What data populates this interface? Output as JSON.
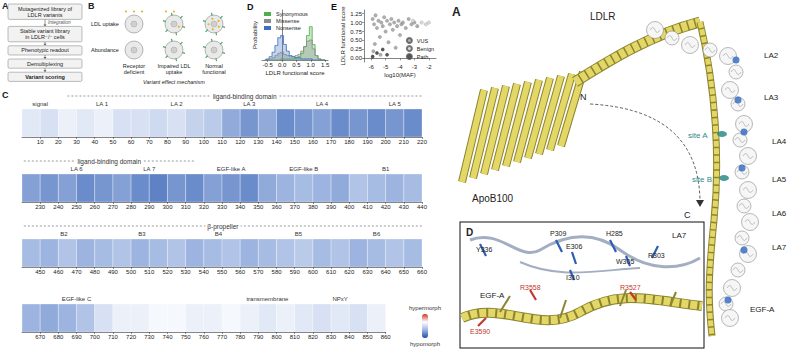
{
  "figure_left": {
    "A": {
      "label": "A",
      "steps": [
        "Mutagenized library of LDLR variants",
        "Stable variant library in LDLR⁻/⁻ cells",
        "Phenotypic readout",
        "Demultiplexing",
        "Variant scoring"
      ],
      "arrow_label": "Integration"
    },
    "B": {
      "label": "B",
      "rows": [
        "LDL uptake",
        "Abundance"
      ],
      "columns": [
        "Receptor deficient",
        "Impaired LDL uptake",
        "Normal functional"
      ],
      "caption": "Variant effect mechanism"
    }
  },
  "chart_data": [
    {
      "type": "line",
      "panel": "D",
      "line_style": "step",
      "xlabel": "LDLR functional score",
      "ylabel": "Probability",
      "x": [
        -0.6,
        -0.5,
        -0.4,
        -0.3,
        -0.2,
        -0.1,
        0,
        0.1,
        0.2,
        0.3,
        0.4,
        0.5,
        0.6,
        0.7,
        0.8,
        0.9,
        1.0,
        1.1,
        1.2,
        1.3,
        1.4,
        1.5
      ],
      "series": [
        {
          "name": "Synonymous",
          "color": "#4daf4a",
          "values": [
            0,
            0,
            0,
            0,
            0,
            0,
            0.01,
            0.01,
            0.01,
            0.01,
            0.01,
            0.02,
            0.03,
            0.06,
            0.12,
            0.22,
            0.3,
            0.14,
            0.04,
            0.01,
            0,
            0
          ]
        },
        {
          "name": "Missense",
          "color": "#8c8c8c",
          "values": [
            0,
            0,
            0.01,
            0.02,
            0.04,
            0.06,
            0.07,
            0.05,
            0.04,
            0.03,
            0.03,
            0.04,
            0.05,
            0.08,
            0.12,
            0.17,
            0.18,
            0.1,
            0.04,
            0.01,
            0,
            0
          ]
        },
        {
          "name": "Nonsense",
          "color": "#3a6fc1",
          "values": [
            0,
            0.01,
            0.03,
            0.07,
            0.13,
            0.2,
            0.22,
            0.14,
            0.08,
            0.04,
            0.03,
            0.02,
            0.02,
            0.01,
            0.01,
            0.01,
            0.01,
            0,
            0,
            0,
            0,
            0
          ]
        }
      ],
      "xlim": [
        -0.7,
        1.6
      ],
      "xticks": [
        -0.5,
        {
          "value": 0,
          "label": "0.0"
        },
        0.5,
        {
          "value": 1,
          "label": "1.0"
        },
        1.5
      ],
      "ylim": [
        0,
        0.45
      ],
      "tick_labels": "x",
      "grid": false,
      "legend": "upper left"
    },
    {
      "type": "scatter",
      "panel": "E",
      "marker": "circle",
      "xlabel": "log10(MAF)",
      "ylabel": "LDLR functional score",
      "series": [
        {
          "name": "VUS",
          "color": "#9a9a9a",
          "values": [
            [
              -5.9,
              1.1
            ],
            [
              -5.8,
              0.95
            ],
            [
              -5.7,
              1.2
            ],
            [
              -5.6,
              0.85
            ],
            [
              -5.5,
              1.05
            ],
            [
              -5.4,
              0.6
            ],
            [
              -5.3,
              1.0
            ],
            [
              -5.2,
              0.9
            ],
            [
              -5.1,
              1.15
            ],
            [
              -5.0,
              0.75
            ],
            [
              -4.9,
              1.05
            ],
            [
              -4.8,
              0.45
            ],
            [
              -4.7,
              0.95
            ],
            [
              -4.6,
              1.1
            ],
            [
              -4.5,
              0.8
            ],
            [
              -4.4,
              1.0
            ],
            [
              -4.3,
              0.3
            ],
            [
              -4.2,
              0.9
            ],
            [
              -4.1,
              1.05
            ],
            [
              -4.0,
              0.65
            ],
            [
              -3.9,
              0.95
            ],
            [
              -3.8,
              1.0
            ],
            [
              -3.6,
              0.85
            ],
            [
              -3.4,
              1.1
            ],
            [
              -3.2,
              0.95
            ],
            [
              -3.0,
              1.0
            ],
            [
              -2.8,
              0.9
            ],
            [
              -5.85,
              0.2
            ],
            [
              -5.35,
              0.1
            ],
            [
              -5.75,
              0.4
            ]
          ]
        },
        {
          "name": "Benign",
          "color": "#cfcfcf",
          "values": [
            [
              -2.5,
              1.0
            ],
            [
              -2.2,
              0.95
            ],
            [
              -3.1,
              1.05
            ],
            [
              -2.0,
              1.0
            ]
          ]
        },
        {
          "name": "Path",
          "color": "#2b2b2b",
          "values": [
            [
              -5.9,
              0.05
            ],
            [
              -5.6,
              0.15
            ],
            [
              -5.2,
              0.25
            ],
            [
              -4.9,
              0.1
            ]
          ]
        }
      ],
      "xlim": [
        -6.5,
        -1.5
      ],
      "xticks": [
        -6,
        -5,
        -4,
        -3,
        -2
      ],
      "ylim": [
        -0.1,
        1.35
      ],
      "yticks": [
        {
          "value": 0,
          "label": "0.00"
        },
        0.25,
        {
          "value": 0.5,
          "label": "0.50"
        },
        0.75,
        {
          "value": 1,
          "label": "1.00"
        },
        1.25
      ],
      "grid": false,
      "legend": "lower right"
    },
    {
      "type": "heatmap",
      "panel": "C",
      "grid": false,
      "colorbar": {
        "range": [
          0,
          1.5
        ],
        "labels": [
          "hypermorph",
          "hypomorph"
        ]
      },
      "strips": [
        {
          "xlim": [
            0,
            220
          ],
          "bins": [
            0,
            10,
            20,
            30,
            40,
            50,
            60,
            70,
            80,
            90,
            100,
            110,
            120,
            130,
            140,
            150,
            160,
            170,
            180,
            190,
            200,
            210,
            220
          ],
          "values": [
            0.85,
            0.8,
            0.9,
            0.85,
            0.9,
            0.8,
            0.8,
            0.75,
            0.8,
            0.7,
            0.65,
            0.45,
            0.35,
            0.45,
            0.3,
            0.35,
            0.4,
            0.3,
            0.35,
            0.3,
            0.35,
            0.3
          ],
          "xticks": [
            10,
            20,
            30,
            40,
            50,
            60,
            70,
            80,
            90,
            100,
            110,
            120,
            130,
            140,
            150,
            160,
            170,
            180,
            190,
            200,
            210,
            220
          ],
          "annotations": [
            {
              "text": "signal",
              "x": 10
            },
            {
              "text": "LA 1",
              "x": 44
            },
            {
              "text": "LA 2",
              "x": 85
            },
            {
              "text": "LA 3",
              "x": 125
            },
            {
              "text": "LA 4",
              "x": 165
            },
            {
              "text": "LA 5",
              "x": 205
            }
          ],
          "spans": [
            {
              "text": "ligand-binding domain",
              "from": 25,
              "to": 220
            }
          ]
        },
        {
          "xlim": [
            220,
            440
          ],
          "bins": [
            220,
            230,
            240,
            250,
            260,
            270,
            280,
            290,
            300,
            310,
            320,
            330,
            340,
            350,
            360,
            370,
            380,
            390,
            400,
            410,
            420,
            430,
            440
          ],
          "values": [
            0.4,
            0.35,
            0.4,
            0.3,
            0.35,
            0.4,
            0.3,
            0.25,
            0.35,
            0.3,
            0.4,
            0.35,
            0.3,
            0.45,
            0.5,
            0.55,
            0.5,
            0.45,
            0.6,
            0.55,
            0.5,
            0.55
          ],
          "xticks": [
            230,
            240,
            250,
            260,
            270,
            280,
            290,
            300,
            310,
            320,
            330,
            340,
            350,
            360,
            370,
            380,
            390,
            400,
            410,
            420,
            430,
            440
          ],
          "annotations": [
            {
              "text": "LA 6",
              "x": 250
            },
            {
              "text": "LA 7",
              "x": 290
            },
            {
              "text": "EGF-like A",
              "x": 335
            },
            {
              "text": "EGF-like B",
              "x": 375
            },
            {
              "text": "B1",
              "x": 420
            }
          ],
          "spans": [
            {
              "text": "ligand-binding domain",
              "from": 221,
              "to": 315
            }
          ]
        },
        {
          "xlim": [
            440,
            660
          ],
          "bins": [
            440,
            450,
            460,
            470,
            480,
            490,
            500,
            510,
            520,
            530,
            540,
            550,
            560,
            570,
            580,
            590,
            600,
            610,
            620,
            630,
            640,
            650,
            660
          ],
          "values": [
            0.55,
            0.5,
            0.6,
            0.5,
            0.55,
            0.6,
            0.5,
            0.55,
            0.6,
            0.5,
            0.55,
            0.6,
            0.5,
            0.55,
            0.6,
            0.65,
            0.55,
            0.6,
            0.5,
            0.55,
            0.6,
            0.55
          ],
          "xticks": [
            450,
            460,
            470,
            480,
            490,
            500,
            510,
            520,
            530,
            540,
            550,
            560,
            570,
            580,
            590,
            600,
            610,
            620,
            630,
            640,
            650,
            660
          ],
          "annotations": [
            {
              "text": "B2",
              "x": 463
            },
            {
              "text": "B3",
              "x": 506
            },
            {
              "text": "B4",
              "x": 548
            },
            {
              "text": "B5",
              "x": 592
            },
            {
              "text": "B6",
              "x": 635
            }
          ],
          "spans": [
            {
              "text": "β-propeller",
              "from": 441,
              "to": 660
            }
          ]
        },
        {
          "xlim": [
            660,
            860
          ],
          "bins": [
            660,
            670,
            680,
            690,
            700,
            710,
            720,
            730,
            740,
            750,
            760,
            770,
            780,
            790,
            800,
            810,
            820,
            830,
            840,
            850,
            860
          ],
          "values": [
            0.5,
            0.45,
            0.5,
            0.6,
            0.8,
            0.9,
            0.9,
            0.95,
            0.95,
            0.9,
            0.9,
            0.95,
            0.9,
            0.85,
            0.9,
            0.85,
            0.8,
            0.85,
            0.8,
            0.9
          ],
          "xticks": [
            670,
            680,
            690,
            700,
            710,
            720,
            730,
            740,
            750,
            760,
            770,
            780,
            790,
            800,
            810,
            820,
            830,
            840,
            850,
            860
          ],
          "annotations": [
            {
              "text": "EGF-like C",
              "x": 690
            },
            {
              "text": "transmembrane",
              "x": 795
            },
            {
              "text": "NPxY",
              "x": 835
            }
          ],
          "spans": []
        }
      ]
    }
  ],
  "figure_right": {
    "A": {
      "label": "A",
      "chains": [
        "LDLR",
        "ApoB100"
      ],
      "termini": [
        "N",
        "C"
      ],
      "domains": [
        "LA2",
        "LA3",
        "LA4",
        "LA5",
        "LA6",
        "LA7",
        "EGF-A"
      ],
      "sites": [
        "site A",
        "site B"
      ]
    },
    "D": {
      "label": "D",
      "domains": [
        "EGF-A",
        "LA7"
      ],
      "ldlr_residues": [
        "Y336",
        "P309",
        "E306",
        "H285",
        "R303",
        "W305",
        "I310"
      ],
      "apob_residues": [
        "R3558",
        "R3527",
        "E3590"
      ]
    }
  }
}
